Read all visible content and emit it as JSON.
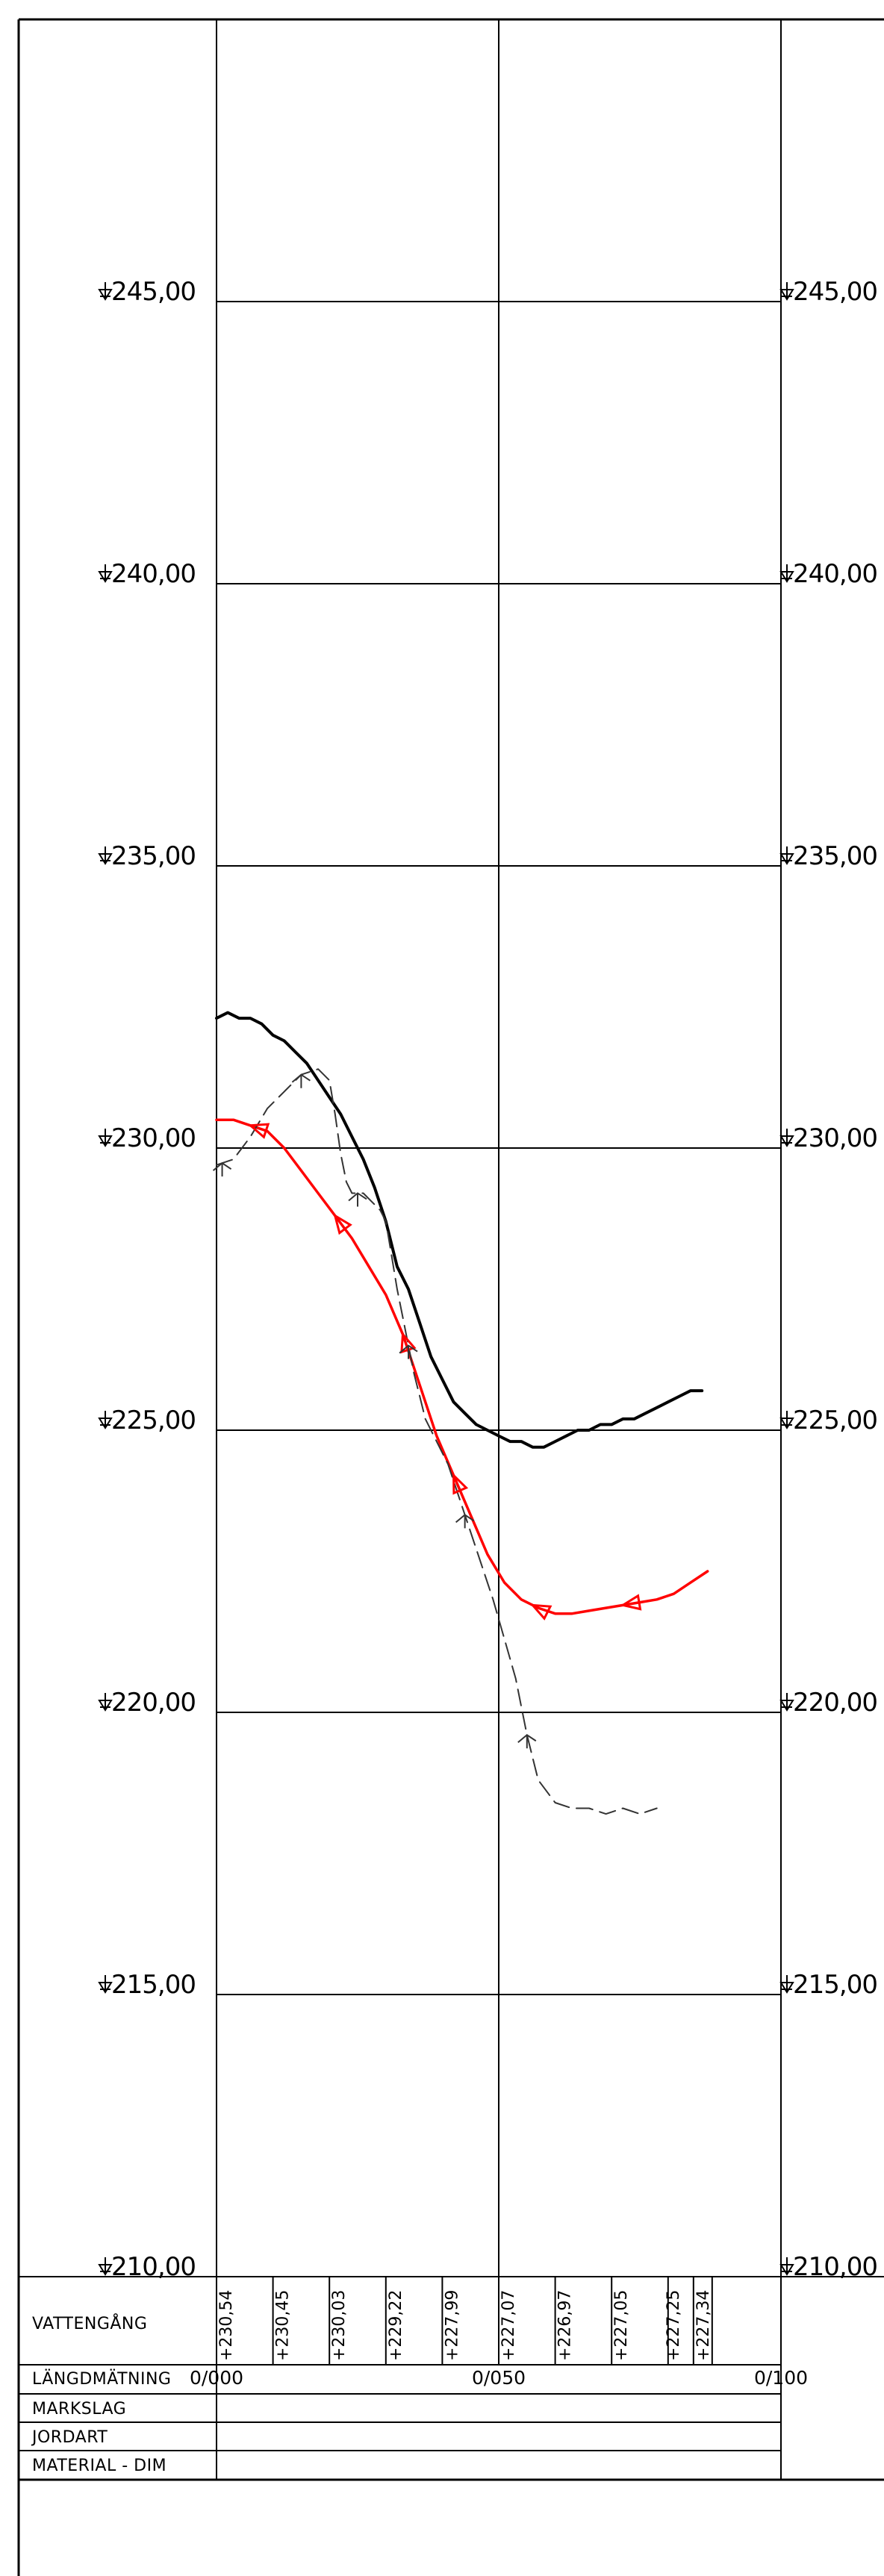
{
  "chart_data": {
    "type": "line",
    "title": "",
    "xlabel": "",
    "ylabel": "",
    "xlim": [
      0,
      100
    ],
    "ylim": [
      210,
      250
    ],
    "elevation_ticks": [
      "245,00",
      "240,00",
      "235,00",
      "230,00",
      "225,00",
      "220,00",
      "215,00",
      "210,00"
    ],
    "elevation_values": [
      245,
      240,
      235,
      230,
      225,
      220,
      215,
      210
    ],
    "series": [
      {
        "role": "terrain",
        "color": "#000000",
        "style": "solid",
        "x": [
          0,
          2,
          4,
          6,
          8,
          10,
          12,
          14,
          16,
          18,
          20,
          22,
          24,
          26,
          28,
          30,
          32,
          34,
          36,
          37,
          38,
          40,
          42,
          44,
          46,
          48,
          50,
          52,
          54,
          56,
          58,
          60,
          62,
          64,
          66,
          68,
          70,
          72,
          74,
          76,
          78,
          80,
          82,
          84,
          86
        ],
        "y": [
          232.3,
          232.4,
          232.3,
          232.3,
          232.2,
          232.0,
          231.9,
          231.7,
          231.5,
          231.2,
          230.9,
          230.6,
          230.2,
          229.8,
          229.3,
          228.7,
          227.9,
          227.5,
          226.9,
          226.6,
          226.3,
          225.9,
          225.5,
          225.3,
          225.1,
          225.0,
          224.9,
          224.8,
          224.8,
          224.7,
          224.7,
          224.8,
          224.9,
          225.0,
          225.0,
          225.1,
          225.1,
          225.2,
          225.2,
          225.3,
          225.4,
          225.5,
          225.6,
          225.7,
          225.7
        ]
      },
      {
        "role": "water_line",
        "color": "#ff0000",
        "style": "solid",
        "x": [
          0,
          3,
          6,
          9,
          12,
          15,
          18,
          21,
          24,
          27,
          30,
          33,
          36,
          39,
          42,
          45,
          48,
          51,
          54,
          57,
          60,
          63,
          66,
          69,
          72,
          75,
          78,
          81,
          84,
          87
        ],
        "y": [
          230.5,
          230.5,
          230.4,
          230.3,
          230.0,
          229.6,
          229.2,
          228.8,
          228.4,
          227.9,
          227.4,
          226.7,
          225.8,
          224.9,
          224.2,
          223.5,
          222.8,
          222.3,
          222.0,
          221.85,
          221.75,
          221.75,
          221.8,
          221.85,
          221.9,
          221.95,
          222.0,
          222.1,
          222.3,
          222.5
        ]
      },
      {
        "role": "bottom_line",
        "color": "#333333",
        "style": "dashed",
        "x": [
          0,
          3,
          6,
          9,
          12,
          15,
          18,
          20,
          21,
          22,
          23,
          24,
          26,
          29,
          30,
          31,
          32,
          33,
          34,
          35,
          36,
          37,
          39,
          41,
          43,
          45,
          47,
          49,
          51,
          53,
          55,
          57,
          60,
          63,
          66,
          69,
          72,
          75,
          78
        ],
        "y": [
          229.7,
          229.8,
          230.2,
          230.7,
          231.0,
          231.3,
          231.4,
          231.2,
          230.6,
          229.9,
          229.4,
          229.2,
          229.2,
          228.9,
          228.7,
          228.1,
          227.5,
          227.0,
          226.5,
          226.0,
          225.6,
          225.2,
          224.8,
          224.4,
          223.8,
          223.2,
          222.6,
          222.0,
          221.3,
          220.6,
          219.6,
          218.8,
          218.4,
          218.3,
          218.3,
          218.2,
          218.3,
          218.2,
          218.3
        ]
      }
    ],
    "vattengang": [
      "+230,54",
      "+230,45",
      "+230,03",
      "+229,22",
      "+227,99",
      "+227,07",
      "+226,97",
      "+227,05",
      "+227,25",
      "+227,34"
    ],
    "vattengang_x": [
      0,
      10,
      20,
      30,
      40,
      50,
      60,
      70,
      80,
      84.5
    ],
    "station_labels": [
      "0/000",
      "0/050",
      "0/100"
    ],
    "station_values": [
      0,
      50,
      100
    ]
  },
  "table": {
    "rows": {
      "vattengang": "VATTENGÅNG",
      "langdmatning": "LÄNGDMÄTNING",
      "markslag": "MARKSLAG",
      "jordart": "JORDART",
      "material": "MATERIAL - DIM"
    }
  },
  "colors": {
    "line": "#000000",
    "water": "#ff0000",
    "bottom": "#333333",
    "background": "#ffffff"
  }
}
